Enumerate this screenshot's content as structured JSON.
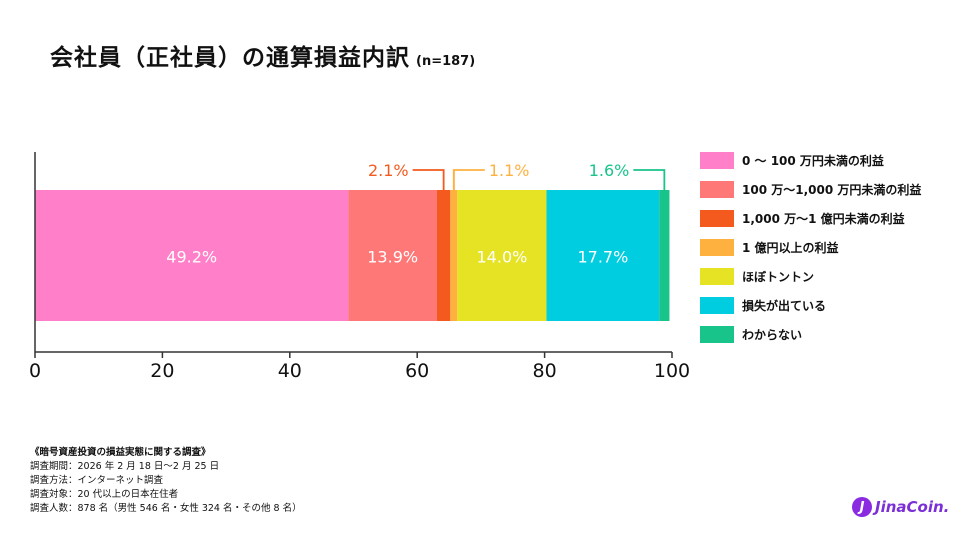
{
  "title": "会社員（正社員）の通算損益内訳",
  "n_label": "(n=187)",
  "chart_data": {
    "type": "bar",
    "orientation": "horizontal-stacked",
    "xlim": [
      0,
      100
    ],
    "x_ticks": [
      0,
      20,
      40,
      60,
      80,
      100
    ],
    "grid": false,
    "legend_placement": "right",
    "series": [
      {
        "name": "0 ～ 100 万円未満の利益",
        "value": 49.2,
        "label": "49.2%",
        "color": "#ff80c8",
        "label_position": "inside"
      },
      {
        "name": "100 万～1,000 万円未満の利益",
        "value": 13.9,
        "label": "13.9%",
        "color": "#ff7878",
        "label_position": "inside"
      },
      {
        "name": "1,000 万～1 億円未満の利益",
        "value": 2.1,
        "label": "2.1%",
        "color": "#f45a1e",
        "label_position": "callout"
      },
      {
        "name": "1 億円以上の利益",
        "value": 1.1,
        "label": "1.1%",
        "color": "#ffb140",
        "label_position": "callout"
      },
      {
        "name": "ほぼトントン",
        "value": 14.0,
        "label": "14.0%",
        "color": "#e6e324",
        "label_position": "inside"
      },
      {
        "name": "損失が出ている",
        "value": 17.7,
        "label": "17.7%",
        "color": "#00cde0",
        "label_position": "inside"
      },
      {
        "name": "わからない",
        "value": 1.6,
        "label": "1.6%",
        "color": "#18c48a",
        "label_position": "callout"
      }
    ],
    "callout_colors": [
      "#f45a1e",
      "#ffb140",
      "#18c48a"
    ]
  },
  "footnote": {
    "title": "《暗号資産投資の損益実態に関する調査》",
    "lines": [
      "調査期間：2026 年 2 月 18 日～2 月 25 日",
      "調査方法：インターネット調査",
      "調査対象：20 代以上の日本在住者",
      "調査人数：878 名（男性 546 名・女性 324 名・その他 8 名）"
    ]
  },
  "logo": {
    "mark": "J",
    "text": "JinaCoin."
  }
}
